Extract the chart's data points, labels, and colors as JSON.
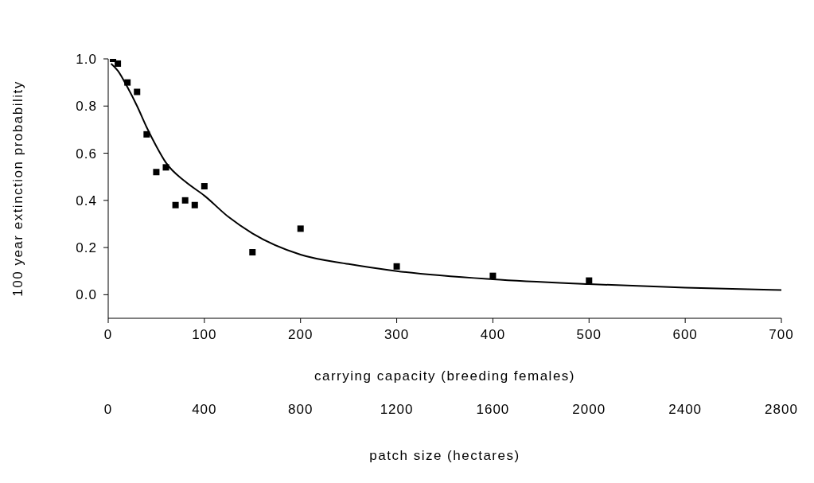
{
  "chart_data": {
    "type": "scatter",
    "xlabel": "carrying capacity (breeding females)",
    "x2label": "patch size (hectares)",
    "ylabel": "100 year extinction probability",
    "xlim": [
      0,
      700
    ],
    "xticks": [
      0,
      100,
      200,
      300,
      400,
      500,
      600,
      700
    ],
    "x2lim": [
      0,
      2800
    ],
    "x2ticks": [
      0,
      400,
      800,
      1200,
      1600,
      2000,
      2400,
      2800
    ],
    "ylim": [
      -0.1,
      1.0
    ],
    "yticks": [
      {
        "value": 0,
        "label": "0.0"
      },
      {
        "value": 0.2,
        "label": "0.2"
      },
      {
        "value": 0.4,
        "label": "0.4"
      },
      {
        "value": 0.6,
        "label": "0.6"
      },
      {
        "value": 0.8,
        "label": "0.8"
      },
      {
        "value": 1.0,
        "label": "1.0"
      }
    ],
    "grid": false,
    "legend": false,
    "marker": "square",
    "series": [
      {
        "type": "scatter",
        "color": "#000000",
        "x": [
          5,
          10,
          20,
          30,
          40,
          50,
          60,
          70,
          80,
          90,
          100,
          150,
          200,
          300,
          400,
          500
        ],
        "values": [
          1.0,
          0.98,
          0.9,
          0.86,
          0.68,
          0.52,
          0.54,
          0.38,
          0.4,
          0.38,
          0.46,
          0.18,
          0.28,
          0.12,
          0.08,
          0.06
        ]
      },
      {
        "type": "line",
        "color": "#000000",
        "marker": "none",
        "line_style": "solid",
        "x": [
          3,
          10,
          20,
          30,
          40,
          50,
          60,
          80,
          100,
          125,
          150,
          200,
          250,
          300,
          400,
          500,
          600,
          700
        ],
        "values": [
          0.98,
          0.95,
          0.88,
          0.8,
          0.71,
          0.63,
          0.56,
          0.48,
          0.42,
          0.33,
          0.26,
          0.17,
          0.13,
          0.1,
          0.065,
          0.045,
          0.03,
          0.02
        ]
      }
    ]
  }
}
